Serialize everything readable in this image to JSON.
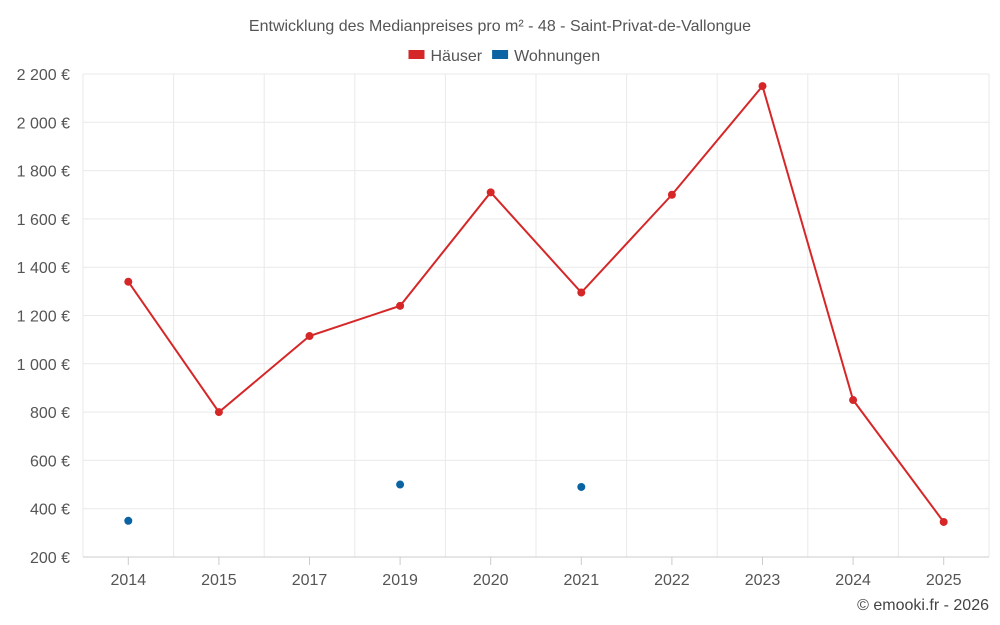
{
  "chart_data": {
    "type": "line",
    "title": "Entwicklung des Medianpreises pro m² - 48 - Saint-Privat-de-Vallongue",
    "categories": [
      "2014",
      "2015",
      "2017",
      "2019",
      "2020",
      "2021",
      "2022",
      "2023",
      "2024",
      "2025"
    ],
    "series": [
      {
        "name": "Häuser",
        "color": "#d62728",
        "values": [
          1340,
          800,
          1115,
          1240,
          1710,
          1295,
          1700,
          2150,
          850,
          345
        ],
        "line": true
      },
      {
        "name": "Wohnungen",
        "color": "#0a64a4",
        "values": [
          350,
          null,
          null,
          500,
          null,
          490,
          null,
          null,
          null,
          null
        ],
        "line": false
      }
    ],
    "y_ticks": [
      "200 €",
      "400 €",
      "600 €",
      "800 €",
      "1 000 €",
      "1 200 €",
      "1 400 €",
      "1 600 €",
      "1 800 €",
      "2 000 €",
      "2 200 €"
    ],
    "ylim": [
      200,
      2200
    ],
    "y_step": 200,
    "grid": true,
    "legend_position": "top-center",
    "credit": "© emooki.fr - 2026"
  }
}
